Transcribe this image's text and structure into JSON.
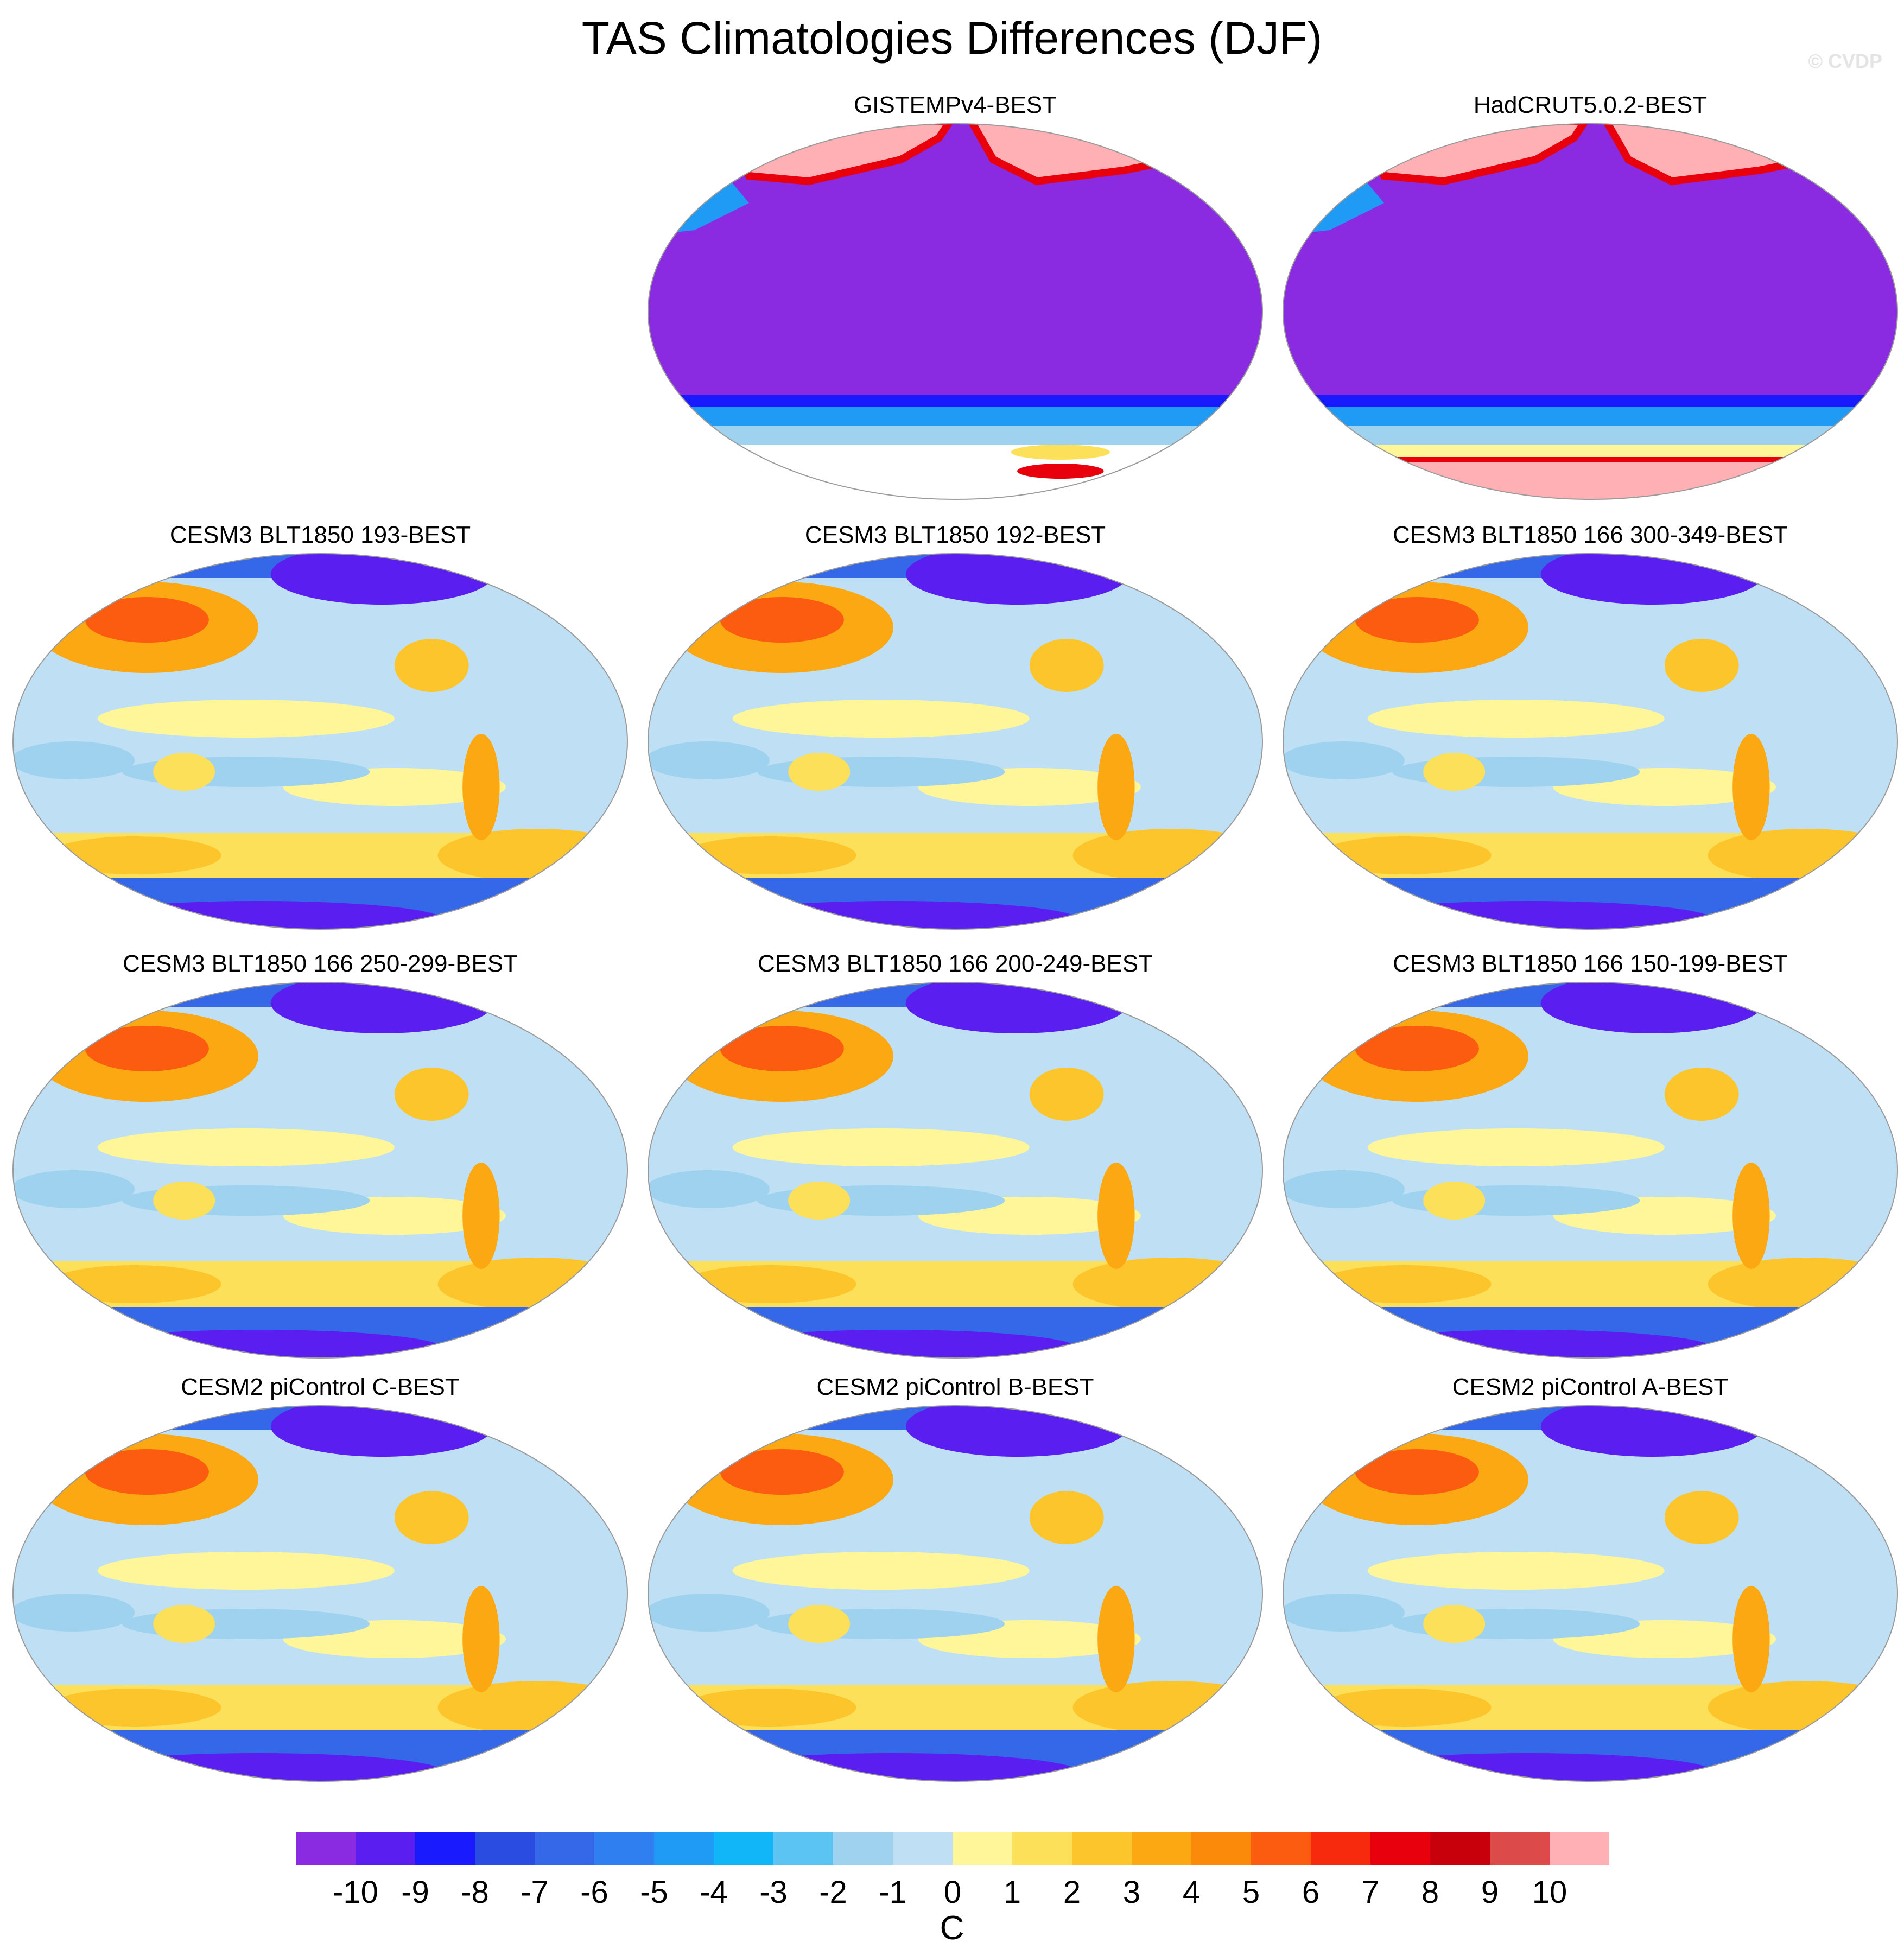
{
  "title": "TAS Climatologies Differences (DJF)",
  "watermark": "© CVDP",
  "colorbar": {
    "unit": "C",
    "ticks": [
      "-10",
      "-9",
      "-8",
      "-7",
      "-6",
      "-5",
      "-4",
      "-3",
      "-2",
      "-1",
      "0",
      "1",
      "2",
      "3",
      "4",
      "5",
      "6",
      "7",
      "8",
      "9",
      "10"
    ],
    "colors": [
      "#8a2be2",
      "#5a1ff0",
      "#1a1aff",
      "#2a4ce0",
      "#3568e8",
      "#2f7ff0",
      "#1f9af5",
      "#10b6f8",
      "#5cc4f2",
      "#9fd2ee",
      "#bfe0f4",
      "#fff69a",
      "#fde05a",
      "#fcc52c",
      "#fca812",
      "#fb8a0a",
      "#fb5c10",
      "#f82a0e",
      "#e8000c",
      "#c8000c",
      "#dd4a4a",
      "#ffb0b4"
    ]
  },
  "panels": [
    {
      "id": "gistemp",
      "title": "GISTEMPv4-BEST",
      "style": "obs_gistemp"
    },
    {
      "id": "hadcrut",
      "title": "HadCRUT5.0.2-BEST",
      "style": "obs_hadcrut"
    },
    {
      "id": "cesm3_193",
      "title": "CESM3 BLT1850 193-BEST",
      "style": "model"
    },
    {
      "id": "cesm3_192",
      "title": "CESM3 BLT1850 192-BEST",
      "style": "model"
    },
    {
      "id": "cesm3_300",
      "title": "CESM3 BLT1850 166 300-349-BEST",
      "style": "model"
    },
    {
      "id": "cesm3_250",
      "title": "CESM3 BLT1850 166 250-299-BEST",
      "style": "model"
    },
    {
      "id": "cesm3_200",
      "title": "CESM3 BLT1850 166 200-249-BEST",
      "style": "model"
    },
    {
      "id": "cesm3_150",
      "title": "CESM3 BLT1850 166 150-199-BEST",
      "style": "model"
    },
    {
      "id": "cesm2_c",
      "title": "CESM2 piControl C-BEST",
      "style": "model"
    },
    {
      "id": "cesm2_b",
      "title": "CESM2 piControl B-BEST",
      "style": "model"
    },
    {
      "id": "cesm2_a",
      "title": "CESM2 piControl A-BEST",
      "style": "model"
    }
  ]
}
